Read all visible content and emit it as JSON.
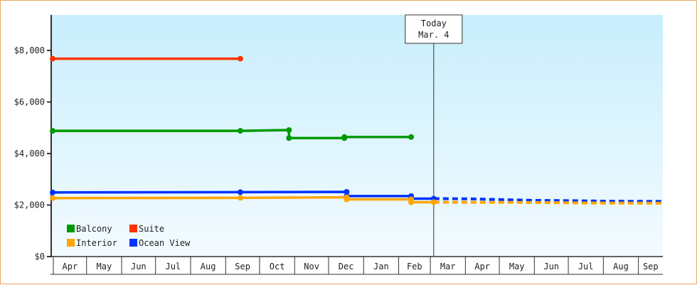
{
  "chart_data": {
    "type": "line",
    "title": "",
    "xlabel": "",
    "ylabel": "",
    "ylim": [
      0,
      9300
    ],
    "yticks": [
      0,
      2000,
      4000,
      6000,
      8000
    ],
    "ytick_labels": [
      "$0",
      "$2,000",
      "$4,000",
      "$6,000",
      "$8,000"
    ],
    "x_unit": "days since Apr 1",
    "xlim": [
      0,
      539
    ],
    "x_months": [
      {
        "label": "Apr",
        "start": 0
      },
      {
        "label": "May",
        "start": 30
      },
      {
        "label": "Jun",
        "start": 61
      },
      {
        "label": "Jul",
        "start": 91
      },
      {
        "label": "Aug",
        "start": 122
      },
      {
        "label": "Sep",
        "start": 153
      },
      {
        "label": "Oct",
        "start": 183
      },
      {
        "label": "Nov",
        "start": 214
      },
      {
        "label": "Dec",
        "start": 244
      },
      {
        "label": "Jan",
        "start": 275
      },
      {
        "label": "Feb",
        "start": 306
      },
      {
        "label": "Mar",
        "start": 334
      },
      {
        "label": "Apr",
        "start": 365
      },
      {
        "label": "May",
        "start": 395
      },
      {
        "label": "Jun",
        "start": 426
      },
      {
        "label": "Jul",
        "start": 456
      },
      {
        "label": "Aug",
        "start": 487
      },
      {
        "label": "Sep",
        "start": 518
      }
    ],
    "today": {
      "line1": "Today",
      "line2": "Mar. 4",
      "x": 337
    },
    "series": [
      {
        "name": "Suite",
        "color": "#ff3300",
        "points": [
          [
            0,
            7680
          ],
          [
            166,
            7680
          ]
        ],
        "projection": []
      },
      {
        "name": "Balcony",
        "color": "#009900",
        "points": [
          [
            0,
            4880
          ],
          [
            166,
            4880
          ],
          [
            209,
            4910
          ],
          [
            209,
            4600
          ],
          [
            258,
            4600
          ],
          [
            258,
            4640
          ],
          [
            317,
            4640
          ]
        ],
        "projection": []
      },
      {
        "name": "Ocean View",
        "color": "#0033ff",
        "points": [
          [
            0,
            2490
          ],
          [
            166,
            2500
          ],
          [
            260,
            2510
          ],
          [
            260,
            2350
          ],
          [
            317,
            2350
          ],
          [
            317,
            2250
          ],
          [
            337,
            2250
          ]
        ],
        "projection": [
          [
            337,
            2250
          ],
          [
            368,
            2240
          ],
          [
            397,
            2210
          ],
          [
            426,
            2180
          ],
          [
            456,
            2170
          ],
          [
            487,
            2150
          ],
          [
            539,
            2140
          ]
        ]
      },
      {
        "name": "Interior",
        "color": "#ffa500",
        "points": [
          [
            0,
            2270
          ],
          [
            166,
            2280
          ],
          [
            260,
            2300
          ],
          [
            260,
            2220
          ],
          [
            317,
            2220
          ],
          [
            317,
            2110
          ],
          [
            337,
            2110
          ]
        ],
        "projection": [
          [
            337,
            2110
          ],
          [
            426,
            2100
          ],
          [
            470,
            2080
          ],
          [
            539,
            2070
          ]
        ]
      }
    ],
    "legend": {
      "placement": "bottom-left",
      "order": [
        "Balcony",
        "Suite",
        "Interior",
        "Ocean View"
      ]
    },
    "grid": false
  }
}
